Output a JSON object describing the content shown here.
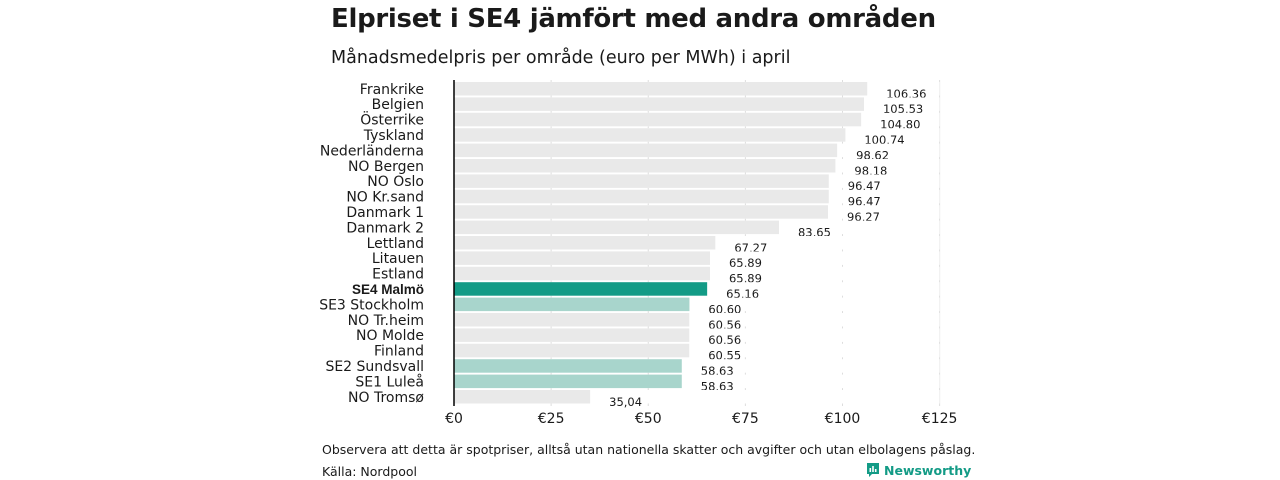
{
  "header": {
    "title": "Elpriset i SE4 jämfört med andra områden",
    "subtitle": "Månadsmedelpris per område (euro per MWh) i april"
  },
  "footer": {
    "note": "Observera att detta är spotpriser, alltså utan nationella skatter och avgifter och utan elbolagens påslag.",
    "source": "Källa: Nordpool",
    "brand": "Newsworthy",
    "brand_icon": "newsworthy-logo-icon"
  },
  "colors": {
    "highlight": "#139b86",
    "se_regions": "#a8d5cc",
    "others": "#e9e9e9",
    "gridline": "#dddddd",
    "axis": "#000000",
    "brand": "#139b86"
  },
  "chart_data": {
    "type": "bar",
    "orientation": "horizontal",
    "xlim": [
      0,
      125
    ],
    "x_ticks": [
      0,
      25,
      50,
      75,
      100,
      125
    ],
    "x_tick_labels": [
      "€0",
      "€25",
      "€50",
      "€75",
      "€100",
      "€125"
    ],
    "grid": true,
    "categories": [
      "Frankrike",
      "Belgien",
      "Österrike",
      "Tyskland",
      "Nederländerna",
      "NO Bergen",
      "NO Oslo",
      "NO Kr.sand",
      "Danmark 1",
      "Danmark 2",
      "Lettland",
      "Litauen",
      "Estland",
      "SE4 Malmö",
      "SE3 Stockholm",
      "NO Tr.heim",
      "NO Molde",
      "Finland",
      "SE2 Sundsvall",
      "SE1 Luleå",
      "NO Tromsø"
    ],
    "values": [
      106.36,
      105.53,
      104.8,
      100.74,
      98.62,
      98.18,
      96.47,
      96.47,
      96.27,
      83.65,
      67.27,
      65.89,
      65.89,
      65.16,
      60.6,
      60.56,
      60.56,
      60.55,
      58.63,
      58.63,
      35.04
    ],
    "value_labels": [
      "106,36",
      "105,53",
      "104,80",
      "100,74",
      "98,62",
      "98,18",
      "96,47",
      "96,47",
      "96,27",
      "83,65",
      "67,27",
      "65,89",
      "65,89",
      "65,16",
      "60,60",
      "60,56",
      "60,56",
      "60,55",
      "58,63",
      "58,63",
      "35,04"
    ],
    "groups": [
      "other",
      "other",
      "other",
      "other",
      "other",
      "other",
      "other",
      "other",
      "other",
      "other",
      "other",
      "other",
      "other",
      "highlight",
      "se",
      "other",
      "other",
      "other",
      "se",
      "se",
      "other"
    ]
  }
}
